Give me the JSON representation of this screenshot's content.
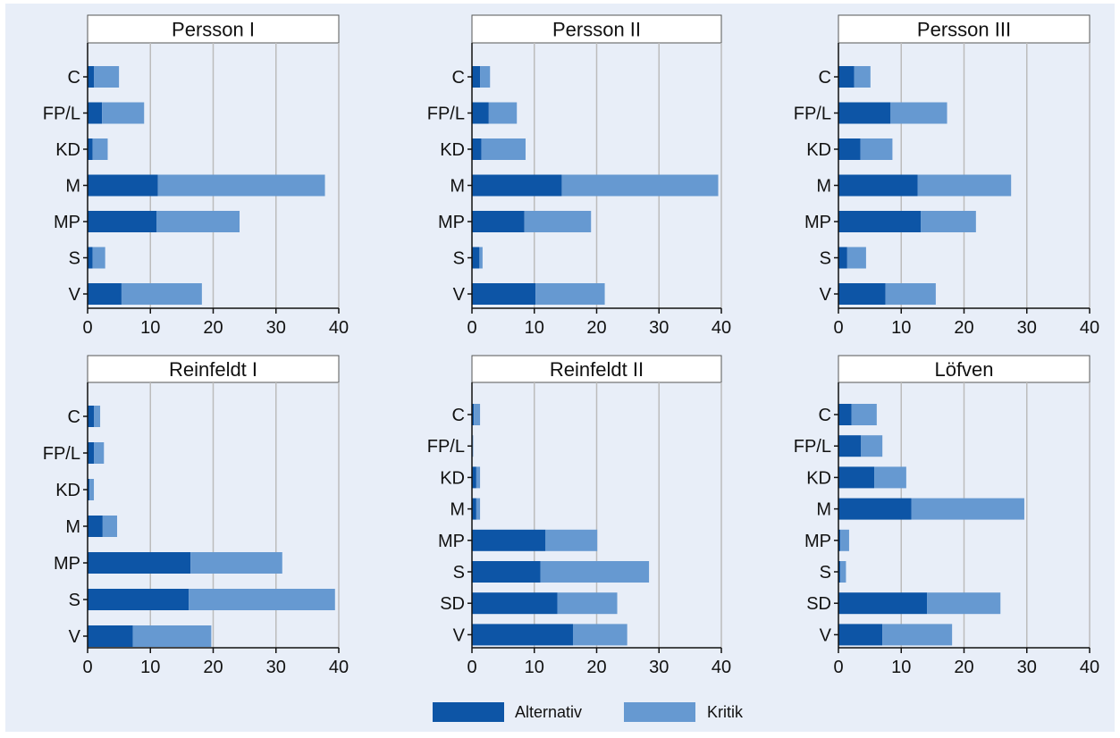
{
  "colors": {
    "background": "#e8eef8",
    "alternativ": "#0d55a6",
    "kritik": "#6699d1",
    "grid": "#bcbcbc",
    "title_box": "#ffffff",
    "axis": "#111111"
  },
  "legend": {
    "placement": "bottom-center",
    "items": [
      {
        "label": "Alternativ",
        "color_key": "alternativ"
      },
      {
        "label": "Kritik",
        "color_key": "kritik"
      }
    ]
  },
  "chart_data": [
    {
      "type": "bar",
      "orientation": "horizontal",
      "stacked": true,
      "title": "Persson I",
      "categories": [
        "C",
        "FP/L",
        "KD",
        "M",
        "MP",
        "S",
        "V"
      ],
      "series": [
        {
          "name": "Alternativ",
          "values": [
            1,
            2.3,
            0.8,
            11.2,
            11,
            0.8,
            5.4
          ]
        },
        {
          "name": "Kritik",
          "values": [
            4,
            6.7,
            2.4,
            26.6,
            13.2,
            2,
            12.8
          ]
        }
      ],
      "xlim": [
        0,
        40
      ],
      "xticks": [
        0,
        10,
        20,
        30,
        40
      ],
      "grid": true
    },
    {
      "type": "bar",
      "orientation": "horizontal",
      "stacked": true,
      "title": "Persson II",
      "categories": [
        "C",
        "FP/L",
        "KD",
        "M",
        "MP",
        "S",
        "V"
      ],
      "series": [
        {
          "name": "Alternativ",
          "values": [
            1.3,
            2.7,
            1.5,
            14.4,
            8.4,
            1.2,
            10.2
          ]
        },
        {
          "name": "Kritik",
          "values": [
            1.6,
            4.5,
            7.1,
            25.1,
            10.7,
            0.5,
            11.1
          ]
        }
      ],
      "xlim": [
        0,
        40
      ],
      "xticks": [
        0,
        10,
        20,
        30,
        40
      ],
      "grid": true
    },
    {
      "type": "bar",
      "orientation": "horizontal",
      "stacked": true,
      "title": "Persson III",
      "categories": [
        "C",
        "FP/L",
        "KD",
        "M",
        "MP",
        "S",
        "V"
      ],
      "series": [
        {
          "name": "Alternativ",
          "values": [
            2.5,
            8.3,
            3.5,
            12.6,
            13.1,
            1.4,
            7.5
          ]
        },
        {
          "name": "Kritik",
          "values": [
            2.6,
            9,
            5.1,
            14.9,
            8.8,
            3,
            8
          ]
        }
      ],
      "xlim": [
        0,
        40
      ],
      "xticks": [
        0,
        10,
        20,
        30,
        40
      ],
      "grid": true
    },
    {
      "type": "bar",
      "orientation": "horizontal",
      "stacked": true,
      "title": "Reinfeldt I",
      "categories": [
        "C",
        "FP/L",
        "KD",
        "M",
        "MP",
        "S",
        "V"
      ],
      "series": [
        {
          "name": "Alternativ",
          "values": [
            1,
            1,
            0.3,
            2.4,
            16.4,
            16.1,
            7.2
          ]
        },
        {
          "name": "Kritik",
          "values": [
            1,
            1.6,
            0.7,
            2.3,
            14.6,
            23.3,
            12.5
          ]
        }
      ],
      "xlim": [
        0,
        40
      ],
      "xticks": [
        0,
        10,
        20,
        30,
        40
      ],
      "grid": true
    },
    {
      "type": "bar",
      "orientation": "horizontal",
      "stacked": true,
      "title": "Reinfeldt II",
      "categories": [
        "C",
        "FP/L",
        "KD",
        "M",
        "MP",
        "S",
        "SD",
        "V"
      ],
      "series": [
        {
          "name": "Alternativ",
          "values": [
            0.3,
            0,
            0.7,
            0.7,
            11.8,
            11,
            13.7,
            16.2
          ]
        },
        {
          "name": "Kritik",
          "values": [
            1,
            0.2,
            0.6,
            0.6,
            8.3,
            17.4,
            9.6,
            8.7
          ]
        }
      ],
      "xlim": [
        0,
        40
      ],
      "xticks": [
        0,
        10,
        20,
        30,
        40
      ],
      "grid": true
    },
    {
      "type": "bar",
      "orientation": "horizontal",
      "stacked": true,
      "title": "Löfven",
      "categories": [
        "C",
        "FP/L",
        "KD",
        "M",
        "MP",
        "S",
        "SD",
        "V"
      ],
      "series": [
        {
          "name": "Alternativ",
          "values": [
            2.1,
            3.6,
            5.7,
            11.6,
            0.3,
            0.3,
            14.1,
            7
          ]
        },
        {
          "name": "Kritik",
          "values": [
            4,
            3.4,
            5.1,
            18,
            1.4,
            0.9,
            11.7,
            11.1
          ]
        }
      ],
      "xlim": [
        0,
        40
      ],
      "xticks": [
        0,
        10,
        20,
        30,
        40
      ],
      "grid": true
    }
  ]
}
